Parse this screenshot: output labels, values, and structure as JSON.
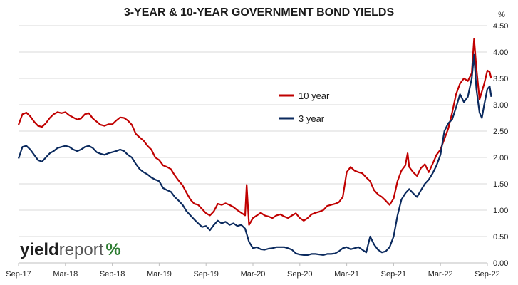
{
  "chart_data": {
    "type": "line",
    "title": "3-YEAR & 10-YEAR GOVERNMENT BOND YIELDS",
    "ylabel": "%",
    "xlim": [
      0,
      60
    ],
    "ylim": [
      0,
      4.5
    ],
    "yticks": [
      "0.00",
      "0.50",
      "1.00",
      "1.50",
      "2.00",
      "2.50",
      "3.00",
      "3.50",
      "4.00",
      "4.50"
    ],
    "xticks": [
      {
        "x": 0,
        "label": "Sep-17"
      },
      {
        "x": 6,
        "label": "Mar-18"
      },
      {
        "x": 12,
        "label": "Sep-18"
      },
      {
        "x": 18,
        "label": "Mar-19"
      },
      {
        "x": 24,
        "label": "Sep-19"
      },
      {
        "x": 30,
        "label": "Mar-20"
      },
      {
        "x": 36,
        "label": "Sep-20"
      },
      {
        "x": 42,
        "label": "Mar-21"
      },
      {
        "x": 48,
        "label": "Sep-21"
      },
      {
        "x": 54,
        "label": "Mar-22"
      },
      {
        "x": 60,
        "label": "Sep-22"
      }
    ],
    "grid": true,
    "legend_position": "middle-right",
    "series": [
      {
        "name": "10 year",
        "color": "#c00000",
        "points": [
          [
            0,
            2.62
          ],
          [
            0.5,
            2.82
          ],
          [
            1,
            2.85
          ],
          [
            1.5,
            2.78
          ],
          [
            2,
            2.68
          ],
          [
            2.5,
            2.6
          ],
          [
            3,
            2.58
          ],
          [
            3.5,
            2.65
          ],
          [
            4,
            2.75
          ],
          [
            4.5,
            2.82
          ],
          [
            5,
            2.86
          ],
          [
            5.5,
            2.84
          ],
          [
            6,
            2.86
          ],
          [
            6.5,
            2.8
          ],
          [
            7,
            2.76
          ],
          [
            7.5,
            2.72
          ],
          [
            8,
            2.74
          ],
          [
            8.5,
            2.82
          ],
          [
            9,
            2.84
          ],
          [
            9.5,
            2.74
          ],
          [
            10,
            2.68
          ],
          [
            10.5,
            2.62
          ],
          [
            11,
            2.6
          ],
          [
            11.5,
            2.63
          ],
          [
            12,
            2.63
          ],
          [
            12.5,
            2.7
          ],
          [
            13,
            2.76
          ],
          [
            13.5,
            2.75
          ],
          [
            14,
            2.7
          ],
          [
            14.5,
            2.62
          ],
          [
            15,
            2.45
          ],
          [
            15.5,
            2.38
          ],
          [
            16,
            2.32
          ],
          [
            16.5,
            2.22
          ],
          [
            17,
            2.15
          ],
          [
            17.5,
            2.0
          ],
          [
            18,
            1.95
          ],
          [
            18.5,
            1.85
          ],
          [
            19,
            1.82
          ],
          [
            19.5,
            1.78
          ],
          [
            20,
            1.66
          ],
          [
            20.5,
            1.56
          ],
          [
            21,
            1.47
          ],
          [
            21.5,
            1.33
          ],
          [
            22,
            1.2
          ],
          [
            22.5,
            1.12
          ],
          [
            23,
            1.1
          ],
          [
            23.5,
            1.02
          ],
          [
            24,
            0.94
          ],
          [
            24.5,
            0.9
          ],
          [
            25,
            0.98
          ],
          [
            25.5,
            1.12
          ],
          [
            26,
            1.1
          ],
          [
            26.5,
            1.13
          ],
          [
            27,
            1.1
          ],
          [
            27.5,
            1.06
          ],
          [
            28,
            1.0
          ],
          [
            28.5,
            0.95
          ],
          [
            29,
            0.9
          ],
          [
            29.2,
            1.48
          ],
          [
            29.5,
            0.72
          ],
          [
            30,
            0.85
          ],
          [
            30.5,
            0.9
          ],
          [
            31,
            0.95
          ],
          [
            31.5,
            0.9
          ],
          [
            32,
            0.88
          ],
          [
            32.5,
            0.85
          ],
          [
            33,
            0.9
          ],
          [
            33.5,
            0.92
          ],
          [
            34,
            0.88
          ],
          [
            34.5,
            0.85
          ],
          [
            35,
            0.9
          ],
          [
            35.5,
            0.94
          ],
          [
            36,
            0.85
          ],
          [
            36.5,
            0.8
          ],
          [
            37,
            0.85
          ],
          [
            37.5,
            0.92
          ],
          [
            38,
            0.95
          ],
          [
            38.5,
            0.97
          ],
          [
            39,
            1.0
          ],
          [
            39.5,
            1.08
          ],
          [
            40,
            1.1
          ],
          [
            40.5,
            1.12
          ],
          [
            41,
            1.15
          ],
          [
            41.5,
            1.25
          ],
          [
            42,
            1.72
          ],
          [
            42.5,
            1.82
          ],
          [
            43,
            1.75
          ],
          [
            43.5,
            1.72
          ],
          [
            44,
            1.7
          ],
          [
            44.5,
            1.62
          ],
          [
            45,
            1.55
          ],
          [
            45.5,
            1.38
          ],
          [
            46,
            1.3
          ],
          [
            46.5,
            1.25
          ],
          [
            47,
            1.18
          ],
          [
            47.5,
            1.1
          ],
          [
            48,
            1.22
          ],
          [
            48.5,
            1.55
          ],
          [
            49,
            1.75
          ],
          [
            49.5,
            1.85
          ],
          [
            49.8,
            2.08
          ],
          [
            50,
            1.82
          ],
          [
            50.5,
            1.72
          ],
          [
            51,
            1.65
          ],
          [
            51.5,
            1.8
          ],
          [
            52,
            1.87
          ],
          [
            52.5,
            1.72
          ],
          [
            53,
            1.88
          ],
          [
            53.5,
            2.05
          ],
          [
            54,
            2.15
          ],
          [
            54.5,
            2.35
          ],
          [
            55,
            2.55
          ],
          [
            55.5,
            2.85
          ],
          [
            56,
            3.2
          ],
          [
            56.5,
            3.4
          ],
          [
            57,
            3.5
          ],
          [
            57.5,
            3.45
          ],
          [
            58,
            3.6
          ],
          [
            58.3,
            4.25
          ],
          [
            58.6,
            3.7
          ],
          [
            59,
            3.1
          ],
          [
            59.3,
            3.25
          ],
          [
            59.6,
            3.4
          ],
          [
            60,
            3.65
          ],
          [
            60.3,
            3.62
          ],
          [
            60.5,
            3.5
          ]
        ]
      },
      {
        "name": "3 year",
        "color": "#0b2a5e",
        "points": [
          [
            0,
            1.98
          ],
          [
            0.5,
            2.2
          ],
          [
            1,
            2.22
          ],
          [
            1.5,
            2.15
          ],
          [
            2,
            2.05
          ],
          [
            2.5,
            1.95
          ],
          [
            3,
            1.92
          ],
          [
            3.5,
            2.0
          ],
          [
            4,
            2.08
          ],
          [
            4.5,
            2.12
          ],
          [
            5,
            2.18
          ],
          [
            5.5,
            2.2
          ],
          [
            6,
            2.22
          ],
          [
            6.5,
            2.2
          ],
          [
            7,
            2.15
          ],
          [
            7.5,
            2.12
          ],
          [
            8,
            2.15
          ],
          [
            8.5,
            2.2
          ],
          [
            9,
            2.22
          ],
          [
            9.5,
            2.18
          ],
          [
            10,
            2.1
          ],
          [
            10.5,
            2.07
          ],
          [
            11,
            2.05
          ],
          [
            11.5,
            2.08
          ],
          [
            12,
            2.1
          ],
          [
            12.5,
            2.12
          ],
          [
            13,
            2.15
          ],
          [
            13.5,
            2.12
          ],
          [
            14,
            2.05
          ],
          [
            14.5,
            2.0
          ],
          [
            15,
            1.88
          ],
          [
            15.5,
            1.78
          ],
          [
            16,
            1.72
          ],
          [
            16.5,
            1.68
          ],
          [
            17,
            1.62
          ],
          [
            17.5,
            1.58
          ],
          [
            18,
            1.55
          ],
          [
            18.5,
            1.42
          ],
          [
            19,
            1.38
          ],
          [
            19.5,
            1.35
          ],
          [
            20,
            1.25
          ],
          [
            20.5,
            1.18
          ],
          [
            21,
            1.1
          ],
          [
            21.5,
            0.98
          ],
          [
            22,
            0.9
          ],
          [
            22.5,
            0.82
          ],
          [
            23,
            0.75
          ],
          [
            23.5,
            0.68
          ],
          [
            24,
            0.7
          ],
          [
            24.5,
            0.62
          ],
          [
            25,
            0.72
          ],
          [
            25.5,
            0.8
          ],
          [
            26,
            0.75
          ],
          [
            26.5,
            0.78
          ],
          [
            27,
            0.72
          ],
          [
            27.5,
            0.75
          ],
          [
            28,
            0.7
          ],
          [
            28.5,
            0.72
          ],
          [
            29,
            0.65
          ],
          [
            29.5,
            0.4
          ],
          [
            30,
            0.28
          ],
          [
            30.5,
            0.3
          ],
          [
            31,
            0.26
          ],
          [
            31.5,
            0.25
          ],
          [
            32,
            0.27
          ],
          [
            32.5,
            0.28
          ],
          [
            33,
            0.3
          ],
          [
            33.5,
            0.3
          ],
          [
            34,
            0.3
          ],
          [
            34.5,
            0.28
          ],
          [
            35,
            0.25
          ],
          [
            35.5,
            0.18
          ],
          [
            36,
            0.16
          ],
          [
            36.5,
            0.15
          ],
          [
            37,
            0.15
          ],
          [
            37.5,
            0.17
          ],
          [
            38,
            0.17
          ],
          [
            38.5,
            0.16
          ],
          [
            39,
            0.15
          ],
          [
            39.5,
            0.17
          ],
          [
            40,
            0.17
          ],
          [
            40.5,
            0.18
          ],
          [
            41,
            0.22
          ],
          [
            41.5,
            0.28
          ],
          [
            42,
            0.3
          ],
          [
            42.5,
            0.26
          ],
          [
            43,
            0.28
          ],
          [
            43.5,
            0.3
          ],
          [
            44,
            0.25
          ],
          [
            44.5,
            0.2
          ],
          [
            45,
            0.5
          ],
          [
            45.5,
            0.35
          ],
          [
            46,
            0.25
          ],
          [
            46.5,
            0.2
          ],
          [
            47,
            0.22
          ],
          [
            47.5,
            0.3
          ],
          [
            48,
            0.5
          ],
          [
            48.5,
            0.9
          ],
          [
            49,
            1.2
          ],
          [
            49.5,
            1.32
          ],
          [
            50,
            1.4
          ],
          [
            50.5,
            1.32
          ],
          [
            51,
            1.25
          ],
          [
            51.5,
            1.38
          ],
          [
            52,
            1.5
          ],
          [
            52.5,
            1.58
          ],
          [
            53,
            1.7
          ],
          [
            53.5,
            1.85
          ],
          [
            54,
            2.05
          ],
          [
            54.5,
            2.5
          ],
          [
            55,
            2.65
          ],
          [
            55.5,
            2.72
          ],
          [
            56,
            2.95
          ],
          [
            56.5,
            3.2
          ],
          [
            57,
            3.05
          ],
          [
            57.5,
            3.15
          ],
          [
            58,
            3.5
          ],
          [
            58.3,
            3.95
          ],
          [
            58.6,
            3.3
          ],
          [
            59,
            2.85
          ],
          [
            59.3,
            2.75
          ],
          [
            59.6,
            3.0
          ],
          [
            60,
            3.3
          ],
          [
            60.3,
            3.35
          ],
          [
            60.5,
            3.15
          ]
        ]
      }
    ]
  },
  "logo": {
    "part1": "yield",
    "part2": "report",
    "part3": "%"
  }
}
